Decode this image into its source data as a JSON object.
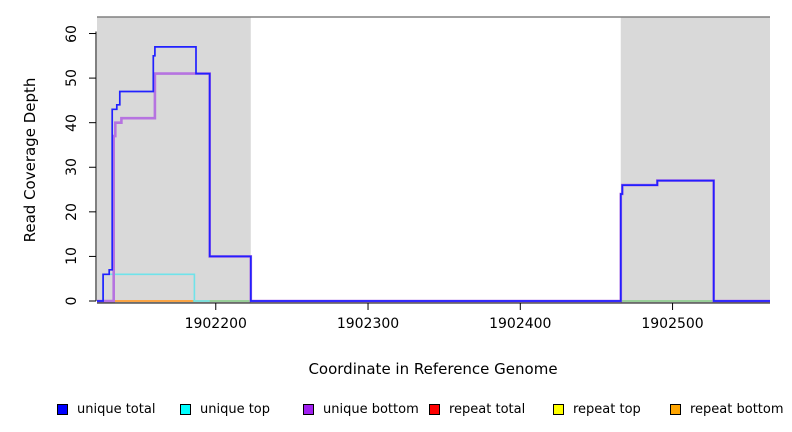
{
  "chart_data": {
    "type": "line",
    "subtype": "step",
    "title": "",
    "xlabel": "Coordinate in Reference Genome",
    "ylabel": "Read Coverage Depth",
    "xlim": [
      1902122,
      1902564
    ],
    "ylim": [
      0,
      60
    ],
    "x_ticks": [
      1902200,
      1902300,
      1902400,
      1902500
    ],
    "y_ticks": [
      0,
      10,
      20,
      30,
      40,
      50,
      60
    ],
    "grid": false,
    "legend_position": "bottom",
    "plot_background": "#ffffff",
    "shaded_region_color": "#d9d9d9",
    "top_border_color": "#808080",
    "axis_color": "#000000",
    "shaded_regions": [
      {
        "name": "shaded-region-left",
        "x0": 1902122,
        "x1": 1902223
      },
      {
        "name": "shaded-region-right",
        "x0": 1902466,
        "x1": 1902564
      }
    ],
    "series": [
      {
        "name": "overlap-baseline-left",
        "color": "#82ca82",
        "width": 1.6,
        "steps": [
          [
            1902185,
            0
          ],
          [
            1902223,
            0
          ]
        ]
      },
      {
        "name": "overlap-baseline-right",
        "color": "#82ca82",
        "width": 1.6,
        "steps": [
          [
            1902466,
            0
          ],
          [
            1902527,
            0
          ]
        ]
      },
      {
        "name": "repeat bottom",
        "color": "#ff9d2e",
        "width": 1.8,
        "steps": [
          [
            1902128,
            0
          ],
          [
            1902185,
            0
          ]
        ]
      },
      {
        "name": "unique top",
        "color": "#6fe3ea",
        "width": 1.6,
        "steps": [
          [
            1902122,
            0
          ],
          [
            1902126,
            6
          ],
          [
            1902186,
            0
          ],
          [
            1902196,
            0
          ]
        ]
      },
      {
        "name": "unique bottom",
        "color": "#b673e0",
        "width": 2.6,
        "steps": [
          [
            1902122,
            0
          ],
          [
            1902133,
            37
          ],
          [
            1902134,
            40
          ],
          [
            1902138,
            41
          ],
          [
            1902160,
            51
          ],
          [
            1902196,
            10
          ],
          [
            1902223,
            0
          ],
          [
            1902466,
            24
          ],
          [
            1902467,
            26
          ],
          [
            1902490,
            27
          ],
          [
            1902527,
            0
          ],
          [
            1902564,
            0
          ]
        ]
      },
      {
        "name": "unique total",
        "color": "#2121ff",
        "width": 1.7,
        "steps": [
          [
            1902122,
            0
          ],
          [
            1902126,
            6
          ],
          [
            1902130,
            7
          ],
          [
            1902132,
            43
          ],
          [
            1902135,
            44
          ],
          [
            1902137,
            47
          ],
          [
            1902159,
            55
          ],
          [
            1902160,
            57
          ],
          [
            1902187,
            51
          ],
          [
            1902196,
            10
          ],
          [
            1902223,
            0
          ],
          [
            1902466,
            24
          ],
          [
            1902467,
            26
          ],
          [
            1902490,
            27
          ],
          [
            1902527,
            0
          ],
          [
            1902564,
            0
          ]
        ]
      }
    ],
    "legend": [
      {
        "label": "unique total",
        "color": "#0000ff"
      },
      {
        "label": "unique top",
        "color": "#00ffff"
      },
      {
        "label": "unique bottom",
        "color": "#a020f0"
      },
      {
        "label": "repeat total",
        "color": "#ff0000"
      },
      {
        "label": "repeat top",
        "color": "#ffff00"
      },
      {
        "label": "repeat bottom",
        "color": "#ffa500"
      }
    ]
  }
}
